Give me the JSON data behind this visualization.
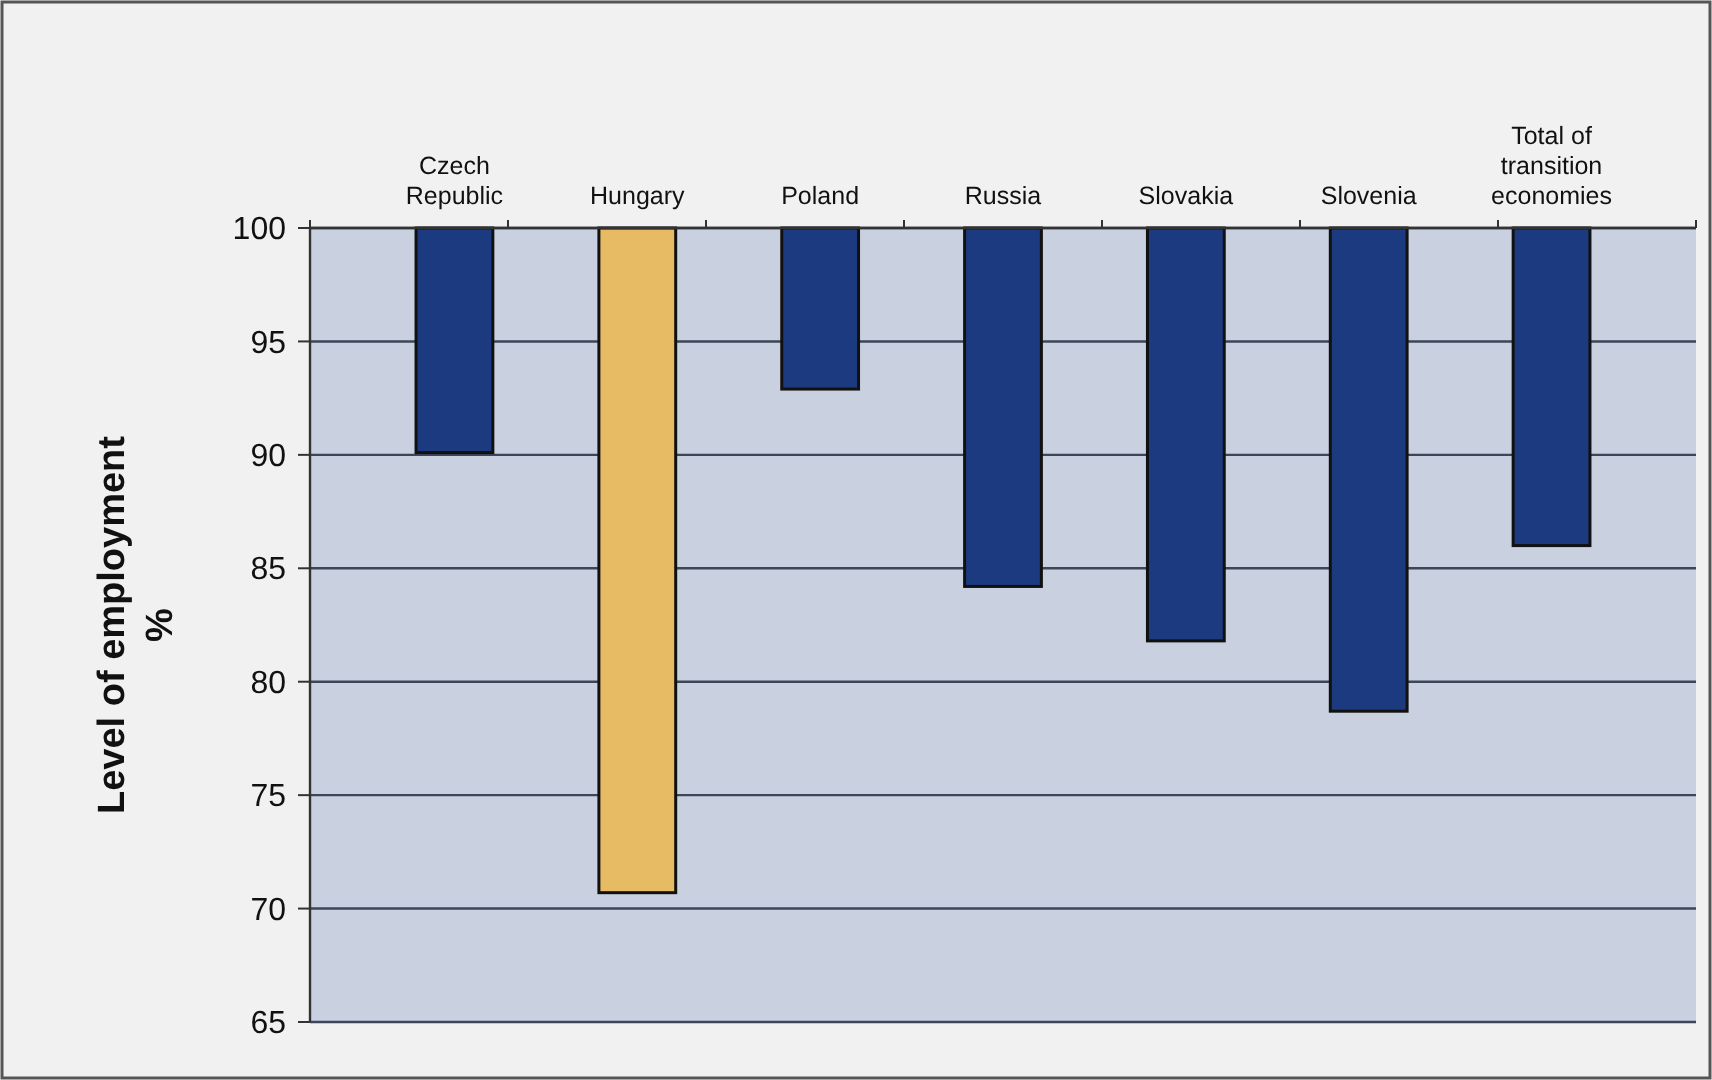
{
  "chart_data": {
    "type": "bar",
    "ylabel": "Level of employment\n%",
    "categories": [
      "Czech Republic",
      "Hungary",
      "Poland",
      "Russia",
      "Slovakia",
      "Slovenia",
      "Total of transition economies"
    ],
    "base": [
      100,
      100,
      100,
      100,
      100,
      100,
      100
    ],
    "values": [
      -9.9,
      -29.3,
      -7.1,
      -15.8,
      -18.2,
      -21.3,
      -14.0
    ],
    "colors": [
      "#1c3a80",
      "#e6bb63",
      "#1c3a80",
      "#1c3a80",
      "#1c3a80",
      "#1c3a80",
      "#1c3a80"
    ],
    "ylim": [
      65,
      100
    ],
    "yticks": [
      65,
      70,
      75,
      80,
      85,
      90,
      95,
      100
    ],
    "grid": "y"
  }
}
